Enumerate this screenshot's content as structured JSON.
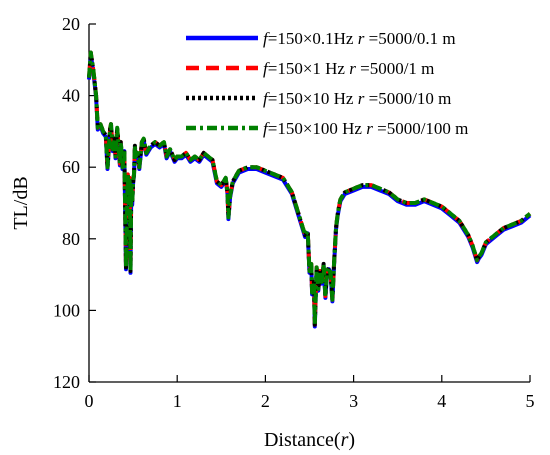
{
  "chart_data": {
    "type": "line",
    "xlabel_text": "Distance(",
    "xlabel_var": "r",
    "xlabel_close": ")",
    "ylabel": "TL/dB",
    "xlim": [
      0,
      5
    ],
    "ylim": [
      20,
      120
    ],
    "y_inverted": true,
    "grid": false,
    "legend_position": "top-right",
    "xticks": [
      0,
      1,
      2,
      3,
      4,
      5
    ],
    "yticks": [
      20,
      40,
      60,
      80,
      100,
      120
    ],
    "x": [
      0,
      0.02,
      0.05,
      0.08,
      0.1,
      0.13,
      0.16,
      0.19,
      0.21,
      0.24,
      0.25,
      0.27,
      0.29,
      0.3,
      0.32,
      0.35,
      0.36,
      0.38,
      0.4,
      0.42,
      0.44,
      0.45,
      0.46,
      0.47,
      0.48,
      0.49,
      0.5,
      0.51,
      0.52,
      0.53,
      0.55,
      0.57,
      0.6,
      0.62,
      0.65,
      0.7,
      0.75,
      0.8,
      0.85,
      0.88,
      0.92,
      0.97,
      1.0,
      1.05,
      1.1,
      1.15,
      1.2,
      1.25,
      1.3,
      1.35,
      1.4,
      1.45,
      1.5,
      1.55,
      1.57,
      1.58,
      1.6,
      1.63,
      1.7,
      1.8,
      1.9,
      2.0,
      2.1,
      2.2,
      2.3,
      2.35,
      2.4,
      2.45,
      2.48,
      2.5,
      2.52,
      2.53,
      2.55,
      2.56,
      2.58,
      2.6,
      2.62,
      2.64,
      2.66,
      2.68,
      2.7,
      2.72,
      2.74,
      2.76,
      2.78,
      2.8,
      2.82,
      2.85,
      2.9,
      3.0,
      3.1,
      3.2,
      3.3,
      3.4,
      3.5,
      3.6,
      3.7,
      3.8,
      3.9,
      4.0,
      4.1,
      4.2,
      4.3,
      4.35,
      4.4,
      4.42,
      4.45,
      4.5,
      4.6,
      4.7,
      4.8,
      4.9,
      5.0
    ],
    "series": [
      {
        "name_prefix": "f",
        "name_rest": "=150×0.1Hz ",
        "name_var": "r",
        "name_value": " =5000/0.1 m",
        "color": "#0000ff",
        "dash": "solid",
        "offset": 0.5
      },
      {
        "name_prefix": "f",
        "name_rest": "=150×1 Hz ",
        "name_var": "r",
        "name_value": " =5000/1 m",
        "color": "#ff0000",
        "dash": "dashed",
        "offset": 0
      },
      {
        "name_prefix": "f",
        "name_rest": "=150×10 Hz ",
        "name_var": "r",
        "name_value": " =5000/10 m",
        "color": "#000000",
        "dash": "dotted",
        "offset": 0
      },
      {
        "name_prefix": "f",
        "name_rest": "=150×100 Hz ",
        "name_var": "r",
        "name_value": " =5000/100 m",
        "color": "#008000",
        "dash": "dashdot",
        "offset": 0
      }
    ],
    "values": [
      35,
      28,
      33,
      40,
      49,
      48,
      50,
      51,
      60,
      49,
      48,
      55,
      52,
      57,
      49,
      59,
      53,
      60,
      55,
      88,
      62,
      70,
      63,
      89,
      65,
      70,
      64,
      62,
      54,
      57,
      56,
      60,
      53,
      52,
      56,
      54,
      53,
      54,
      53,
      57,
      55,
      58,
      57,
      57,
      56,
      58,
      57,
      58,
      56,
      57,
      58,
      64,
      65,
      63,
      67,
      74,
      68,
      64,
      61,
      60,
      60,
      61,
      62,
      63,
      67,
      71,
      75,
      79,
      78,
      89,
      87,
      95,
      92,
      104,
      88,
      94,
      89,
      92,
      87,
      96,
      89,
      88,
      90,
      97,
      86,
      77,
      73,
      69,
      67,
      66,
      65,
      65,
      66,
      67,
      69,
      70,
      70,
      69,
      70,
      71,
      73,
      75,
      79,
      82,
      86,
      85,
      84,
      81,
      79,
      77,
      76,
      75,
      73
    ]
  }
}
